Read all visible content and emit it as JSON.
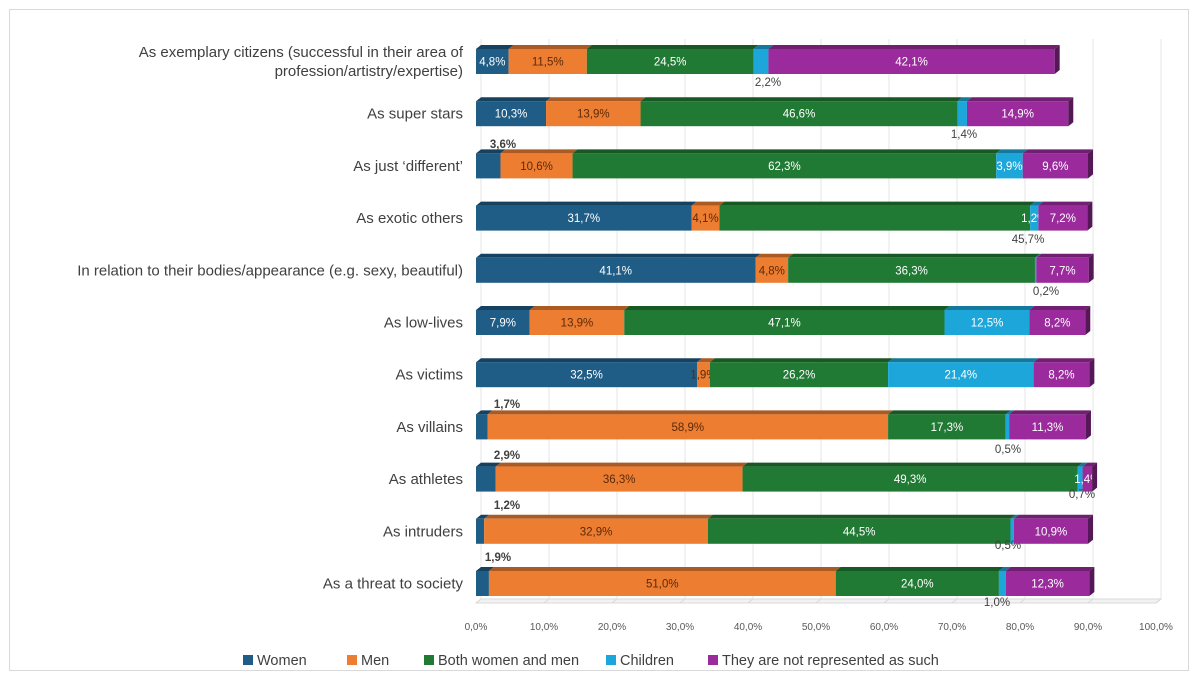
{
  "chart_data": {
    "type": "bar",
    "orientation": "horizontal",
    "stacked": true,
    "style": "3d",
    "categories": [
      "As exemplary citizens (successful in their area of profession/artistry/expertise)",
      "As super stars",
      "As just ‘different’",
      "As exotic others",
      "In relation to their bodies/appearance (e.g. sexy, beautiful)",
      "As low-lives",
      "As victims",
      "As villains",
      "As athletes",
      "As intruders",
      "As a threat to society"
    ],
    "category_lines": [
      [
        "As exemplary citizens (successful in their area of",
        "profession/artistry/expertise)"
      ],
      [
        "As super stars"
      ],
      [
        "As just ‘different’"
      ],
      [
        "As exotic others"
      ],
      [
        "In relation to their bodies/appearance (e.g. sexy, beautiful)"
      ],
      [
        "As low-lives"
      ],
      [
        "As victims"
      ],
      [
        "As villains"
      ],
      [
        "As athletes"
      ],
      [
        "As intruders"
      ],
      [
        "As a threat to society"
      ]
    ],
    "series": [
      {
        "name": "Women",
        "color": "#1f5c86",
        "values": [
          4.8,
          10.3,
          3.6,
          31.7,
          41.1,
          7.9,
          32.5,
          1.7,
          2.9,
          1.2,
          1.9
        ],
        "labels": [
          "4,8%",
          "10,3%",
          "3,6%",
          "31,7%",
          "41,1%",
          "7,9%",
          "32,5%",
          "1,7%",
          "2,9%",
          "1,2%",
          "1,9%"
        ]
      },
      {
        "name": "Men",
        "color": "#ed7d31",
        "values": [
          11.5,
          13.9,
          10.6,
          4.1,
          4.8,
          13.9,
          1.9,
          58.9,
          36.3,
          32.9,
          51.0
        ],
        "labels": [
          "11,5%",
          "13,9%",
          "10,6%",
          "4,1%",
          "4,8%",
          "13,9%",
          "1,9%",
          "58,9%",
          "36,3%",
          "32,9%",
          "51,0%"
        ]
      },
      {
        "name": "Both women and men",
        "color": "#217a34",
        "values": [
          24.5,
          46.6,
          62.3,
          45.7,
          36.3,
          47.1,
          26.2,
          17.3,
          49.3,
          44.5,
          24.0
        ],
        "labels": [
          "24,5%",
          "46,6%",
          "62,3%",
          "45,7%",
          "36,3%",
          "47,1%",
          "26,2%",
          "17,3%",
          "49,3%",
          "44,5%",
          "24,0%"
        ]
      },
      {
        "name": "Children",
        "color": "#1ca6d9",
        "values": [
          2.2,
          1.4,
          3.9,
          1.2,
          0.2,
          12.5,
          21.4,
          0.5,
          0.7,
          0.5,
          1.0
        ],
        "labels": [
          "2,2%",
          "1,4%",
          "3,9%",
          "1,2%",
          "0,2%",
          "12,5%",
          "21,4%",
          "0,5%",
          "0,7%",
          "0,5%",
          "1,0%"
        ]
      },
      {
        "name": "They are not represented as such",
        "color": "#9b2b9d",
        "values": [
          42.1,
          14.9,
          9.6,
          7.2,
          7.7,
          8.2,
          8.2,
          11.3,
          1.4,
          10.9,
          12.3
        ],
        "labels": [
          "42,1%",
          "14,9%",
          "9,6%",
          "7,2%",
          "7,7%",
          "8,2%",
          "8,2%",
          "11,3%",
          "1,4%",
          "10,9%",
          "12,3%"
        ]
      }
    ],
    "xlim": [
      0,
      100
    ],
    "ticks": [
      0,
      10,
      20,
      30,
      40,
      50,
      60,
      70,
      80,
      90,
      100
    ],
    "tick_labels": [
      "0,0%",
      "10,0%",
      "20,0%",
      "30,0%",
      "40,0%",
      "50,0%",
      "60,0%",
      "70,0%",
      "80,0%",
      "90,0%",
      "100,0%"
    ],
    "grid": true,
    "legend_position": "bottom"
  }
}
